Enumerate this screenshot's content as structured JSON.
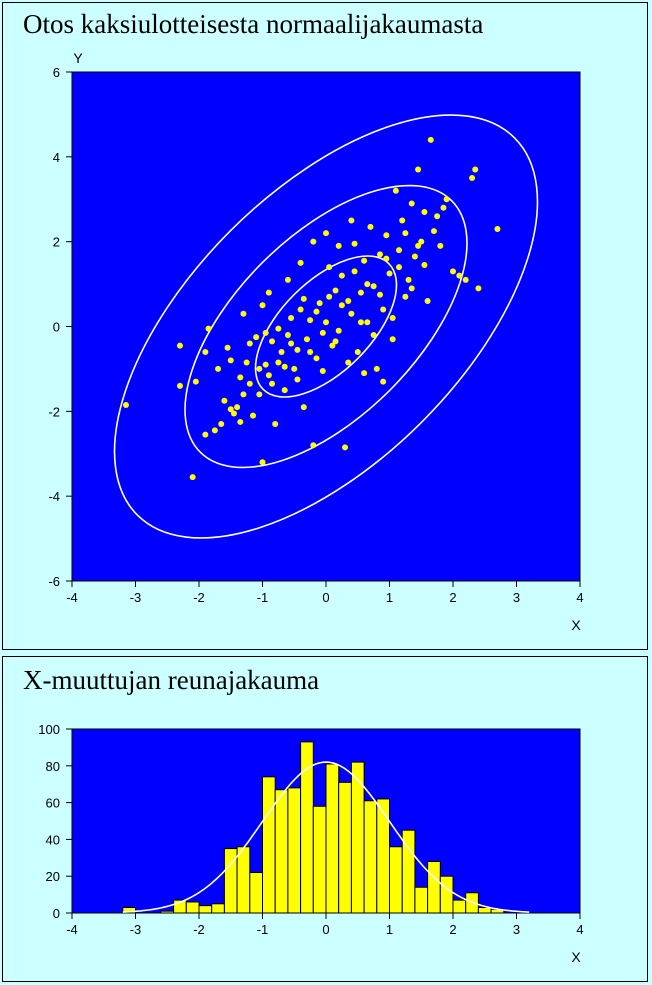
{
  "colors": {
    "page_background": "#ccffff",
    "plot_background": "#0000ff",
    "points": "#ffff00",
    "contours": "#ffffff",
    "bars": "#ffff00",
    "curve": "#ffffff"
  },
  "top_panel": {
    "title": "Otos kaksiulotteisesta normaalijakaumasta",
    "xlabel": "X",
    "ylabel": "Y"
  },
  "bottom_panel": {
    "title": "X-muuttujan reunajakauma",
    "xlabel": "X"
  },
  "chart_data": [
    {
      "type": "scatter",
      "title": "Otos kaksiulotteisesta normaalijakaumasta",
      "xlabel": "X",
      "ylabel": "Y",
      "xlim": [
        -4,
        4
      ],
      "ylim": [
        -6,
        6
      ],
      "x_ticks": [
        -4,
        -3,
        -2,
        -1,
        0,
        1,
        2,
        3,
        4
      ],
      "y_ticks": [
        -6,
        -4,
        -2,
        0,
        2,
        4,
        6
      ],
      "grid": false,
      "contours": [
        {
          "center": [
            0,
            0
          ],
          "angle_deg": 45,
          "semi_axes": [
            1.4,
            0.71
          ]
        },
        {
          "center": [
            0,
            0
          ],
          "angle_deg": 45,
          "semi_axes": [
            2.8,
            1.42
          ]
        },
        {
          "center": [
            0,
            0
          ],
          "angle_deg": 45,
          "semi_axes": [
            4.2,
            2.13
          ]
        }
      ],
      "points": [
        [
          -3.15,
          -1.85
        ],
        [
          -2.3,
          -0.45
        ],
        [
          -2.3,
          -1.4
        ],
        [
          -2.1,
          -3.55
        ],
        [
          -2.05,
          -1.3
        ],
        [
          -1.9,
          -2.55
        ],
        [
          -1.85,
          -0.05
        ],
        [
          -1.75,
          -2.45
        ],
        [
          -1.65,
          -2.3
        ],
        [
          -1.6,
          -1.75
        ],
        [
          -1.55,
          -0.5
        ],
        [
          -1.5,
          -1.95
        ],
        [
          -1.45,
          -2.05
        ],
        [
          -1.4,
          -1.9
        ],
        [
          -1.35,
          -2.25
        ],
        [
          -1.3,
          -1.6
        ],
        [
          -1.25,
          -0.85
        ],
        [
          -1.2,
          -1.35
        ],
        [
          -1.15,
          -2.1
        ],
        [
          -1.1,
          -0.25
        ],
        [
          -1.05,
          -1.0
        ],
        [
          -1.0,
          -3.2
        ],
        [
          -0.95,
          -0.9
        ],
        [
          -0.9,
          -1.15
        ],
        [
          -0.85,
          -0.35
        ],
        [
          -0.8,
          -2.3
        ],
        [
          -0.75,
          -0.85
        ],
        [
          -0.7,
          -0.6
        ],
        [
          -0.65,
          -1.5
        ],
        [
          -0.6,
          -0.2
        ],
        [
          -0.55,
          0.2
        ],
        [
          -0.5,
          -1.0
        ],
        [
          -0.45,
          -0.55
        ],
        [
          -0.4,
          0.4
        ],
        [
          -0.35,
          -1.9
        ],
        [
          -0.3,
          -0.3
        ],
        [
          -0.25,
          0.15
        ],
        [
          -0.2,
          -2.8
        ],
        [
          -0.15,
          -0.75
        ],
        [
          -0.1,
          0.55
        ],
        [
          -0.05,
          -0.15
        ],
        [
          0.0,
          0.1
        ],
        [
          0.05,
          1.4
        ],
        [
          0.1,
          -0.45
        ],
        [
          0.15,
          0.85
        ],
        [
          0.2,
          -0.1
        ],
        [
          0.25,
          1.2
        ],
        [
          0.3,
          -2.85
        ],
        [
          0.35,
          0.6
        ],
        [
          0.4,
          0.3
        ],
        [
          0.45,
          1.95
        ],
        [
          0.5,
          -0.6
        ],
        [
          0.55,
          0.8
        ],
        [
          0.6,
          1.55
        ],
        [
          0.65,
          0.1
        ],
        [
          0.7,
          2.35
        ],
        [
          0.75,
          0.95
        ],
        [
          0.8,
          -1.0
        ],
        [
          0.85,
          1.7
        ],
        [
          0.9,
          0.4
        ],
        [
          0.95,
          2.15
        ],
        [
          1.0,
          1.25
        ],
        [
          1.05,
          -0.3
        ],
        [
          1.1,
          3.2
        ],
        [
          1.15,
          1.8
        ],
        [
          1.2,
          2.5
        ],
        [
          1.25,
          0.7
        ],
        [
          1.3,
          1.1
        ],
        [
          1.35,
          2.9
        ],
        [
          1.4,
          1.65
        ],
        [
          1.45,
          3.7
        ],
        [
          1.5,
          2.0
        ],
        [
          1.55,
          1.45
        ],
        [
          1.6,
          0.6
        ],
        [
          1.65,
          4.4
        ],
        [
          1.7,
          2.25
        ],
        [
          1.75,
          2.6
        ],
        [
          1.8,
          1.9
        ],
        [
          1.85,
          2.8
        ],
        [
          1.9,
          3.0
        ],
        [
          2.0,
          1.3
        ],
        [
          2.1,
          1.2
        ],
        [
          2.2,
          1.1
        ],
        [
          2.3,
          3.5
        ],
        [
          2.35,
          3.7
        ],
        [
          2.4,
          0.9
        ],
        [
          2.7,
          2.3
        ],
        [
          -1.9,
          -0.6
        ],
        [
          -1.7,
          -1.0
        ],
        [
          -1.5,
          -0.8
        ],
        [
          -1.35,
          -1.2
        ],
        [
          -1.2,
          -0.4
        ],
        [
          -1.05,
          -1.6
        ],
        [
          -0.95,
          -0.15
        ],
        [
          -0.85,
          -1.35
        ],
        [
          -0.75,
          -0.05
        ],
        [
          -0.65,
          -0.95
        ],
        [
          -0.55,
          -0.4
        ],
        [
          -0.45,
          -1.25
        ],
        [
          -0.35,
          0.65
        ],
        [
          -0.25,
          -0.6
        ],
        [
          -0.15,
          0.35
        ],
        [
          -0.05,
          -1.05
        ],
        [
          0.05,
          0.7
        ],
        [
          0.15,
          -0.35
        ],
        [
          0.25,
          0.5
        ],
        [
          0.35,
          -0.85
        ],
        [
          0.45,
          1.3
        ],
        [
          0.55,
          0.1
        ],
        [
          0.65,
          1.0
        ],
        [
          0.75,
          -0.2
        ],
        [
          0.85,
          0.75
        ],
        [
          0.95,
          1.6
        ],
        [
          1.05,
          0.2
        ],
        [
          1.15,
          1.4
        ],
        [
          1.25,
          2.2
        ],
        [
          1.35,
          0.9
        ],
        [
          1.45,
          1.9
        ],
        [
          1.55,
          2.7
        ],
        [
          -0.6,
          1.1
        ],
        [
          -0.4,
          1.5
        ],
        [
          -0.2,
          2.0
        ],
        [
          0.0,
          2.2
        ],
        [
          0.2,
          1.9
        ],
        [
          0.4,
          2.5
        ],
        [
          -1.0,
          0.5
        ],
        [
          -1.3,
          0.3
        ],
        [
          -0.9,
          0.8
        ],
        [
          0.6,
          -1.1
        ],
        [
          0.9,
          -1.3
        ]
      ]
    },
    {
      "type": "bar",
      "title": "X-muuttujan reunajakauma",
      "xlabel": "X",
      "xlim": [
        -4,
        4
      ],
      "ylim": [
        0,
        100
      ],
      "x_ticks": [
        -4,
        -3,
        -2,
        -1,
        0,
        1,
        2,
        3,
        4
      ],
      "y_ticks": [
        0,
        20,
        40,
        60,
        80,
        100
      ],
      "bin_width": 0.2,
      "bins": [
        {
          "x0": -3.2,
          "value": 3
        },
        {
          "x0": -3.0,
          "value": 0
        },
        {
          "x0": -2.8,
          "value": 0
        },
        {
          "x0": -2.6,
          "value": 1
        },
        {
          "x0": -2.4,
          "value": 7
        },
        {
          "x0": -2.2,
          "value": 6
        },
        {
          "x0": -2.0,
          "value": 4
        },
        {
          "x0": -1.8,
          "value": 5
        },
        {
          "x0": -1.6,
          "value": 35
        },
        {
          "x0": -1.4,
          "value": 36
        },
        {
          "x0": -1.2,
          "value": 22
        },
        {
          "x0": -1.0,
          "value": 74
        },
        {
          "x0": -0.8,
          "value": 67
        },
        {
          "x0": -0.6,
          "value": 68
        },
        {
          "x0": -0.4,
          "value": 93
        },
        {
          "x0": -0.2,
          "value": 58
        },
        {
          "x0": 0.0,
          "value": 81
        },
        {
          "x0": 0.2,
          "value": 71
        },
        {
          "x0": 0.4,
          "value": 82
        },
        {
          "x0": 0.6,
          "value": 61
        },
        {
          "x0": 0.8,
          "value": 62
        },
        {
          "x0": 1.0,
          "value": 36
        },
        {
          "x0": 1.2,
          "value": 45
        },
        {
          "x0": 1.4,
          "value": 14
        },
        {
          "x0": 1.6,
          "value": 28
        },
        {
          "x0": 1.8,
          "value": 20
        },
        {
          "x0": 2.0,
          "value": 7
        },
        {
          "x0": 2.2,
          "value": 11
        },
        {
          "x0": 2.4,
          "value": 3
        },
        {
          "x0": 2.6,
          "value": 2
        }
      ],
      "curve": {
        "type": "normal_density",
        "mean": 0,
        "sd": 1,
        "peak": 82
      }
    }
  ]
}
